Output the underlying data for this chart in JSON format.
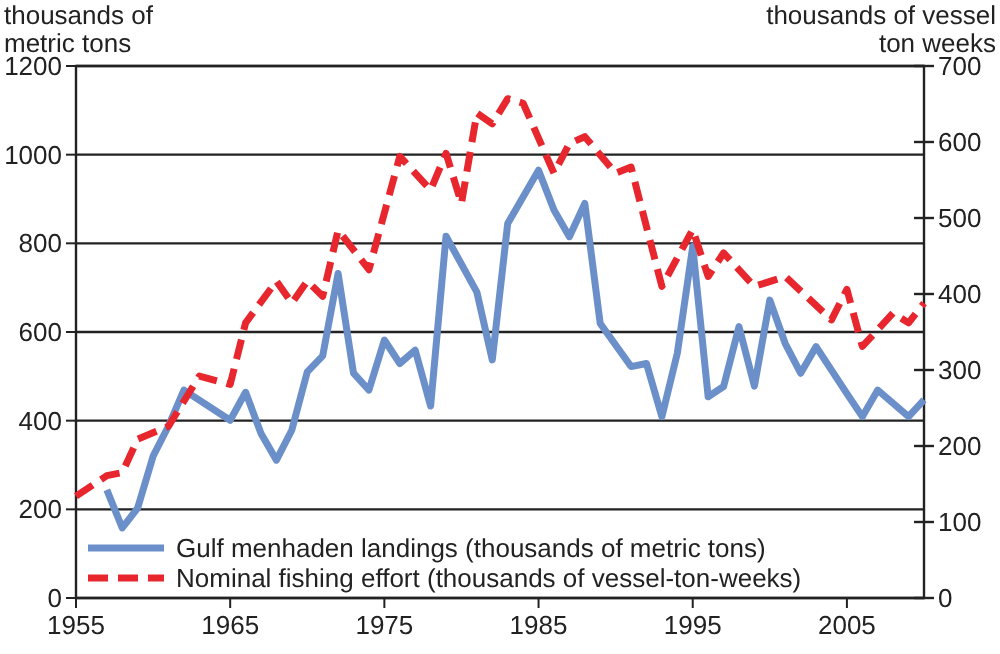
{
  "chart_data": {
    "type": "line",
    "ylabel": "thousands of\nmetric tons",
    "y2label": "thousands of vessel\nton weeks",
    "xlim": [
      1955,
      2010
    ],
    "xticks": [
      1955,
      1965,
      1975,
      1985,
      1995,
      2005
    ],
    "ylim": [
      0,
      1200
    ],
    "yticks": [
      0,
      200,
      400,
      600,
      800,
      1000,
      1200
    ],
    "y2lim": [
      0,
      700
    ],
    "y2ticks": [
      0,
      100,
      200,
      300,
      400,
      500,
      600,
      700
    ],
    "grid": "y",
    "legend": "bottom left",
    "marker": "none",
    "series": [
      {
        "name": "Gulf menhaden landings (thousands of metric tons)",
        "color": "#6b8fc9",
        "line_style": "solid",
        "x": [
          1957,
          1958,
          1959,
          1960,
          1961,
          1962,
          1965,
          1966,
          1967,
          1968,
          1969,
          1970,
          1971,
          1972,
          1973,
          1974,
          1975,
          1976,
          1977,
          1978,
          1979,
          1981,
          1982,
          1983,
          1985,
          1986,
          1987,
          1988,
          1989,
          1991,
          1992,
          1993,
          1994,
          1995,
          1996,
          1997,
          1998,
          1999,
          2000,
          2001,
          2002,
          2003,
          2005,
          2006,
          2007,
          2009,
          2010
        ],
        "values": [
          244,
          158,
          203,
          320,
          388,
          469,
          401,
          464,
          371,
          311,
          379,
          510,
          546,
          732,
          507,
          469,
          582,
          529,
          559,
          433,
          816,
          690,
          537,
          845,
          965,
          875,
          815,
          890,
          619,
          522,
          529,
          409,
          552,
          793,
          454,
          477,
          612,
          478,
          672,
          574,
          507,
          567,
          461,
          409,
          469,
          409,
          447
        ]
      },
      {
        "name": "Nominal fishing effort (thousands of vessel-ton-weeks)",
        "color": "#e8262d",
        "line_style": "dashed",
        "axis": "y2",
        "x": [
          1955,
          1957,
          1958,
          1959,
          1961,
          1963,
          1965,
          1966,
          1968,
          1969,
          1970,
          1971,
          1972,
          1974,
          1976,
          1978,
          1979,
          1980,
          1981,
          1982,
          1983,
          1984,
          1986,
          1987,
          1988,
          1990,
          1991,
          1993,
          1995,
          1996,
          1997,
          1999,
          2001,
          2004,
          2005,
          2006,
          2008,
          2009,
          2010
        ],
        "values": [
          134,
          161,
          165,
          209,
          226,
          292,
          281,
          362,
          417,
          388,
          417,
          397,
          484,
          432,
          581,
          537,
          585,
          519,
          638,
          624,
          657,
          651,
          559,
          598,
          607,
          559,
          567,
          410,
          485,
          423,
          454,
          410,
          423,
          366,
          406,
          331,
          375,
          362,
          388
        ]
      }
    ]
  }
}
